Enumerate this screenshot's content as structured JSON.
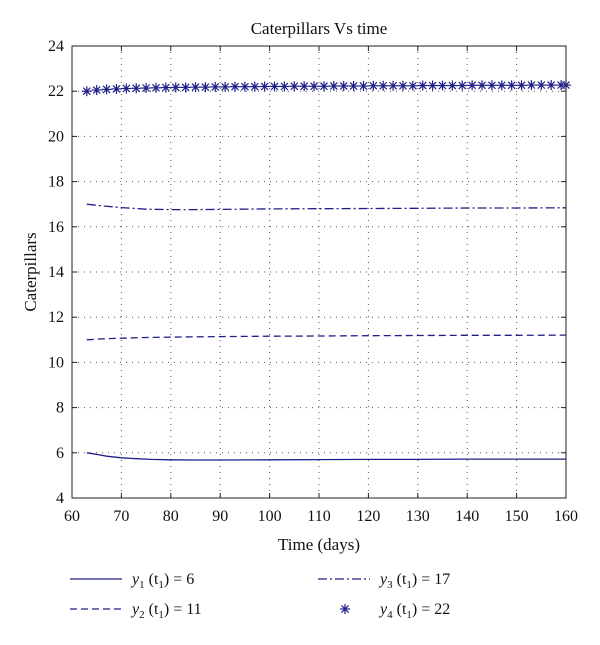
{
  "chart_data": {
    "type": "line",
    "title": "Caterpillars Vs time",
    "xlabel": "Time (days)",
    "ylabel": "Caterpillars",
    "xlim": [
      60,
      160
    ],
    "ylim": [
      4,
      24
    ],
    "xticks": [
      60,
      70,
      80,
      90,
      100,
      110,
      120,
      130,
      140,
      150,
      160
    ],
    "yticks": [
      4,
      6,
      8,
      10,
      12,
      14,
      16,
      18,
      20,
      22,
      24
    ],
    "grid": true,
    "legend_position": "bottom",
    "series": [
      {
        "name": "y₁(t₁) = 6",
        "legend": {
          "var": "y",
          "sub": "1",
          "arg": "(t",
          "argsub": "1",
          "rest": ") = 6"
        },
        "style": "solid",
        "color": "#1f1f8a",
        "x": [
          63,
          65,
          67,
          70,
          73,
          76,
          80,
          85,
          90,
          100,
          110,
          120,
          130,
          140,
          150,
          160
        ],
        "y": [
          6.0,
          5.93,
          5.85,
          5.78,
          5.74,
          5.71,
          5.69,
          5.68,
          5.68,
          5.69,
          5.7,
          5.71,
          5.71,
          5.72,
          5.72,
          5.72
        ]
      },
      {
        "name": "y₂(t₁) = 11",
        "legend": {
          "var": "y",
          "sub": "2",
          "arg": "(t",
          "argsub": "1",
          "rest": ") = 11"
        },
        "style": "dashed",
        "color": "#1f1f8a",
        "x": [
          63,
          66,
          70,
          75,
          80,
          90,
          100,
          110,
          120,
          130,
          140,
          150,
          160
        ],
        "y": [
          11.0,
          11.04,
          11.07,
          11.1,
          11.12,
          11.14,
          11.16,
          11.17,
          11.18,
          11.19,
          11.2,
          11.2,
          11.21
        ]
      },
      {
        "name": "y₃(t₁) = 17",
        "legend": {
          "var": "y",
          "sub": "3",
          "arg": "(t",
          "argsub": "1",
          "rest": ") = 17"
        },
        "style": "dashdot",
        "color": "#1f1f8a",
        "x": [
          63,
          66,
          70,
          75,
          80,
          85,
          90,
          100,
          110,
          120,
          130,
          140,
          150,
          160
        ],
        "y": [
          17.0,
          16.93,
          16.85,
          16.78,
          16.76,
          16.76,
          16.77,
          16.79,
          16.8,
          16.81,
          16.82,
          16.83,
          16.83,
          16.84
        ]
      },
      {
        "name": "y₄(t₁) = 22",
        "legend": {
          "var": "y",
          "sub": "4",
          "arg": "(t",
          "argsub": "1",
          "rest": ") = 22"
        },
        "style": "markers",
        "marker": "asterisk",
        "color": "#1f1f8a",
        "x": [
          63,
          65,
          67,
          69,
          71,
          73,
          75,
          77,
          79,
          81,
          83,
          85,
          87,
          89,
          91,
          93,
          95,
          97,
          99,
          101,
          103,
          105,
          107,
          109,
          111,
          113,
          115,
          117,
          119,
          121,
          123,
          125,
          127,
          129,
          131,
          133,
          135,
          137,
          139,
          141,
          143,
          145,
          147,
          149,
          151,
          153,
          155,
          157,
          159,
          160
        ],
        "y": [
          22.0,
          22.05,
          22.08,
          22.1,
          22.12,
          22.13,
          22.14,
          22.15,
          22.16,
          22.17,
          22.17,
          22.18,
          22.18,
          22.19,
          22.19,
          22.2,
          22.2,
          22.2,
          22.21,
          22.21,
          22.21,
          22.22,
          22.22,
          22.22,
          22.22,
          22.23,
          22.23,
          22.23,
          22.23,
          22.24,
          22.24,
          22.24,
          22.24,
          22.24,
          22.25,
          22.25,
          22.25,
          22.25,
          22.25,
          22.26,
          22.26,
          22.26,
          22.26,
          22.26,
          22.26,
          22.27,
          22.27,
          22.27,
          22.27,
          22.27
        ]
      }
    ]
  }
}
